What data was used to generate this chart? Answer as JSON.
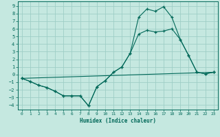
{
  "xlabel": "Humidex (Indice chaleur)",
  "background_color": "#c5e8e0",
  "grid_color": "#9ecec6",
  "line_color": "#006858",
  "xlim": [
    -0.5,
    23.5
  ],
  "ylim": [
    -4.6,
    9.6
  ],
  "xticks": [
    0,
    1,
    2,
    3,
    4,
    5,
    6,
    7,
    8,
    9,
    10,
    11,
    12,
    13,
    14,
    15,
    16,
    17,
    18,
    19,
    20,
    21,
    22,
    23
  ],
  "yticks": [
    -4,
    -3,
    -2,
    -1,
    0,
    1,
    2,
    3,
    4,
    5,
    6,
    7,
    8,
    9
  ],
  "line1_x": [
    0,
    1,
    2,
    3,
    4,
    5,
    6,
    7,
    8,
    9,
    10,
    11,
    12,
    13,
    14,
    15,
    16,
    17,
    18,
    19,
    20,
    21,
    22,
    23
  ],
  "line1_y": [
    -0.5,
    -0.9,
    -1.4,
    -1.7,
    -2.2,
    -2.8,
    -2.8,
    -2.8,
    -4.1,
    -1.6,
    -0.8,
    0.3,
    1.0,
    2.8,
    5.3,
    5.8,
    5.6,
    5.7,
    6.0,
    4.6,
    2.5,
    0.3,
    0.1,
    0.3
  ],
  "line2_x": [
    0,
    1,
    2,
    3,
    4,
    5,
    6,
    7,
    8,
    9,
    10,
    11,
    12,
    13,
    14,
    15,
    16,
    17,
    18,
    19,
    20,
    21,
    22,
    23
  ],
  "line2_y": [
    -0.5,
    -0.9,
    -1.4,
    -1.7,
    -2.2,
    -2.8,
    -2.8,
    -2.8,
    -4.1,
    -1.6,
    -0.8,
    0.3,
    1.0,
    2.8,
    7.5,
    8.6,
    8.3,
    8.9,
    7.5,
    4.6,
    2.5,
    0.3,
    0.1,
    0.3
  ],
  "line3_x": [
    0,
    23
  ],
  "line3_y": [
    -0.5,
    0.3
  ]
}
